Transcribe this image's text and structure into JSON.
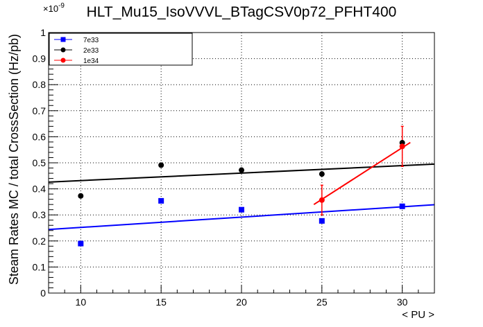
{
  "chart_data": {
    "type": "scatter",
    "title": "HLT_Mu15_IsoVVVL_BTagCSV0p72_PFHT400",
    "xlabel": "< PU >",
    "ylabel": "Steam Rates MC / total CrossSection (Hz/pb)",
    "y_exponent": "×10",
    "y_exponent_power": "-9",
    "xlim": [
      8,
      32
    ],
    "ylim": [
      0,
      1
    ],
    "x_ticks": [
      10,
      15,
      20,
      25,
      30
    ],
    "x_tick_labels": [
      "10",
      "15",
      "20",
      "25",
      "30"
    ],
    "y_ticks": [
      0,
      0.1,
      0.2,
      0.3,
      0.4,
      0.5,
      0.6,
      0.7,
      0.8,
      0.9,
      1
    ],
    "y_tick_labels": [
      "0",
      "0.1",
      "0.2",
      "0.3",
      "0.4",
      "0.5",
      "0.6",
      "0.7",
      "0.8",
      "0.9",
      "1"
    ],
    "grid": true,
    "legend_position": "top-left",
    "series": [
      {
        "name": "7e33",
        "color": "#0000ff",
        "marker": "square",
        "x": [
          10,
          15,
          20,
          25,
          30
        ],
        "y": [
          0.19,
          0.354,
          0.32,
          0.277,
          0.333
        ],
        "fit": {
          "x": [
            8,
            32
          ],
          "y": [
            0.244,
            0.339
          ]
        }
      },
      {
        "name": "2e33",
        "color": "#000000",
        "marker": "circle",
        "x": [
          10,
          15,
          20,
          25,
          30
        ],
        "y": [
          0.373,
          0.491,
          0.472,
          0.457,
          0.577
        ],
        "fit": {
          "x": [
            8,
            32
          ],
          "y": [
            0.426,
            0.495
          ]
        }
      },
      {
        "name": "1e34",
        "color": "#ff0000",
        "marker": "circle",
        "x": [
          25,
          30
        ],
        "y": [
          0.357,
          0.563
        ],
        "yerr": [
          0.057,
          0.077
        ],
        "fit": {
          "x": [
            24.5,
            30.5
          ],
          "y": [
            0.34,
            0.578
          ]
        }
      }
    ]
  }
}
